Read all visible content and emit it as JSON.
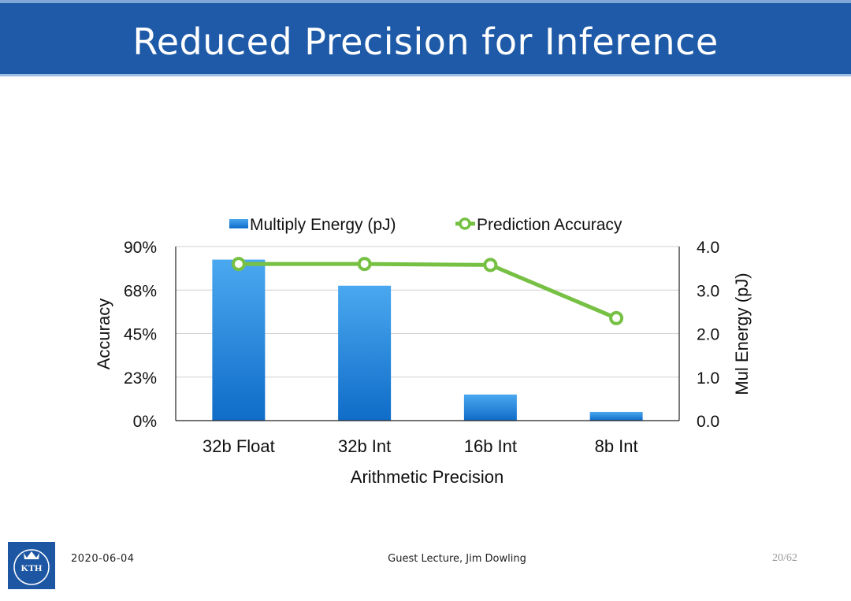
{
  "slide": {
    "title": "Reduced Precision for Inference",
    "footer_date": "2020-06-04",
    "footer_center": "Guest Lecture, Jim Dowling",
    "page_number": "20/62",
    "logo_text": "KTH"
  },
  "colors": {
    "title_bar": "#1e5aa8",
    "bar": "#1f7fd6",
    "line": "#76c043"
  },
  "chart_data": {
    "type": "bar+line",
    "categories": [
      "32b Float",
      "32b Int",
      "16b Int",
      "8b Int"
    ],
    "xlabel": "Arithmetic Precision",
    "y_left": {
      "label": "Accuracy",
      "ticks": [
        "90%",
        "68%",
        "45%",
        "23%",
        "0%"
      ],
      "ylim": [
        0,
        90
      ]
    },
    "y_right": {
      "label": "Mul Energy (pJ)",
      "ticks": [
        "4.0",
        "3.0",
        "2.0",
        "1.0",
        "0.0"
      ],
      "ylim": [
        0,
        4
      ]
    },
    "series": [
      {
        "name": "Multiply Energy (pJ)",
        "type": "bar",
        "axis": "right",
        "values": [
          3.7,
          3.1,
          0.6,
          0.2
        ]
      },
      {
        "name": "Prediction Accuracy",
        "type": "line",
        "axis": "left",
        "values": [
          81,
          81,
          80.5,
          53
        ]
      }
    ],
    "legend": [
      "Multiply Energy (pJ)",
      "Prediction Accuracy"
    ]
  }
}
